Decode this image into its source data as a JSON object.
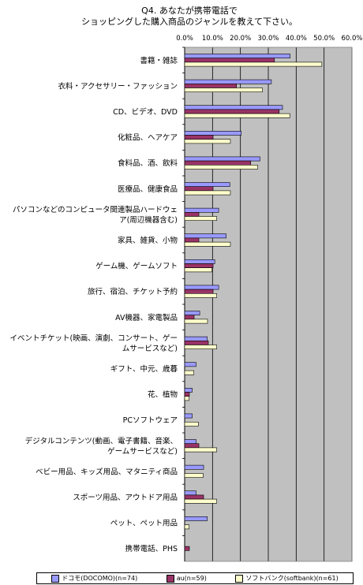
{
  "chart_data": {
    "type": "bar",
    "orientation": "horizontal",
    "title": "Q4. あなたが携帯電話で\nショッピングした購入商品のジャンルを教えて下さい。",
    "title_line1": "Q4. あなたが携帯電話で",
    "title_line2": "ショッピングした購入商品のジャンルを教えて下さい。",
    "xlim": [
      0,
      60
    ],
    "tick_labels": [
      "0.0%",
      "10.0%",
      "20.0%",
      "30.0%",
      "40.0%",
      "50.0%",
      "60.0%"
    ],
    "grid": true,
    "legend_position": "bottom",
    "categories": [
      [
        "書籍・雑誌"
      ],
      [
        "衣料・アクセサリー・ファッション"
      ],
      [
        "CD、ビデオ、DVD"
      ],
      [
        "化粧品、ヘアケア"
      ],
      [
        "食料品、酒、飲料"
      ],
      [
        "医療品、健康食品"
      ],
      [
        "パソコンなどのコンピュータ関連製品ハードウェ",
        "ア(周辺機器含む)"
      ],
      [
        "家具、雑貨、小物"
      ],
      [
        "ゲーム機、ゲームソフト"
      ],
      [
        "旅行、宿泊、チケット予約"
      ],
      [
        "AV機器、家電製品"
      ],
      [
        "イベントチケット(映画、演劇、コンサート、ゲー",
        "ムサービスなど)"
      ],
      [
        "ギフト、中元、歳暮"
      ],
      [
        "花、植物"
      ],
      [
        "PCソフトウェア"
      ],
      [
        "デジタルコンテンツ(動画、電子書籍、音楽、",
        "ゲームサービスなど)"
      ],
      [
        "ベビー用品、キッズ用品、マタニティ商品"
      ],
      [
        "スポーツ用品、アウトドア用品"
      ],
      [
        "ペット、ペット用品"
      ],
      [
        "携帯電話、PHS"
      ]
    ],
    "series": [
      {
        "name": "ドコモ(DOCOMO)(n=74)",
        "color": "#9999ff",
        "values": [
          37.8,
          31.1,
          35.1,
          20.3,
          27.0,
          16.2,
          12.2,
          14.9,
          10.8,
          12.2,
          5.4,
          8.1,
          4.1,
          2.7,
          2.7,
          4.1,
          6.8,
          4.1,
          8.1,
          0.0
        ]
      },
      {
        "name": "au(n=59)",
        "color": "#993366",
        "values": [
          32.2,
          18.6,
          33.9,
          10.2,
          23.7,
          10.2,
          5.1,
          5.1,
          10.2,
          10.2,
          3.4,
          8.5,
          0.0,
          1.7,
          0.0,
          5.1,
          0.0,
          6.8,
          0.0,
          1.7
        ]
      },
      {
        "name": "ソフトバンク(softbank)(n=61)",
        "color": "#ffffcc",
        "values": [
          49.2,
          27.9,
          37.7,
          16.4,
          26.2,
          16.4,
          11.5,
          16.4,
          9.8,
          11.5,
          8.2,
          11.5,
          3.3,
          1.6,
          4.9,
          11.5,
          6.6,
          11.5,
          1.6,
          0.0
        ]
      }
    ]
  }
}
